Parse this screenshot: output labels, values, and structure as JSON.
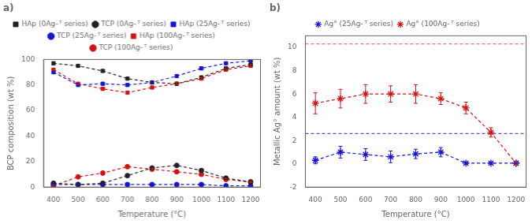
{
  "chart_data": [
    {
      "type": "line",
      "title": "a)",
      "x_label": "Temperature (°C)",
      "y_label": "BCP composition (wt %)",
      "x": [
        400,
        500,
        600,
        700,
        800,
        900,
        1000,
        1100,
        1200
      ],
      "xlim": [
        360,
        1240
      ],
      "xticks": [
        400,
        500,
        600,
        700,
        800,
        900,
        1000,
        1100,
        1200
      ],
      "ylim": [
        0,
        100
      ],
      "yticks": [
        0,
        20,
        40,
        60,
        80,
        100
      ],
      "grid": false,
      "legend": "top",
      "series": [
        {
          "name": "HAp (0Ag- ᵀ series)",
          "color": "#222222",
          "marker": "square",
          "line_style": "dashed",
          "values": [
            97,
            95,
            91,
            85,
            82,
            81,
            86,
            93,
            96
          ],
          "errors": [
            1,
            0.8,
            0.8,
            0.8,
            0.8,
            0.8,
            0.8,
            0.8,
            0.8
          ]
        },
        {
          "name": "TCP (0Ag- ᵀ series)",
          "color": "#222222",
          "marker": "circle",
          "line_style": "dashed",
          "values": [
            3,
            2,
            3,
            9,
            15,
            17,
            13,
            7,
            4
          ],
          "errors": [
            0.5,
            0.5,
            0.5,
            0.8,
            0.8,
            0.8,
            0.8,
            0.8,
            0.5
          ]
        },
        {
          "name": "HAp (25Ag- ᵀ series)",
          "color": "#1515cc",
          "marker": "square",
          "line_style": "dashed",
          "values": [
            90,
            80,
            81,
            80,
            82,
            87,
            93,
            97,
            99
          ],
          "errors": [
            1,
            1,
            1,
            1,
            1,
            1,
            1,
            0.5,
            0.5
          ]
        },
        {
          "name": "TCP (25Ag- ᵀ series)",
          "color": "#1515cc",
          "marker": "circle",
          "line_style": "dashed",
          "values": [
            2,
            2,
            2,
            2,
            2,
            2,
            2,
            1,
            1
          ],
          "errors": [
            0.5,
            0.5,
            0.5,
            0.5,
            0.5,
            0.5,
            0.5,
            0.3,
            0.3
          ]
        },
        {
          "name": "HAp (100Ag- ᵀ series)",
          "color": "#cc1515",
          "marker": "square",
          "line_style": "dashed",
          "values": [
            92,
            81,
            77,
            74,
            78,
            81,
            85,
            92,
            95
          ],
          "errors": [
            0.8,
            0.8,
            1.0,
            0.8,
            0.8,
            0.8,
            0.8,
            0.8,
            0.8
          ]
        },
        {
          "name": "TCP (100Ag- ᵀ series)",
          "color": "#cc1515",
          "marker": "circle",
          "line_style": "dashed",
          "values": [
            1,
            8,
            11,
            16,
            14,
            12,
            10,
            6,
            4
          ],
          "errors": [
            0.5,
            0.8,
            0.8,
            0.8,
            0.8,
            0.8,
            0.8,
            0.8,
            0.5
          ]
        }
      ]
    },
    {
      "type": "line",
      "title": "b)",
      "x_label": "Temperature (°C)",
      "y_label": "Metallic Ag° amount (wt %)",
      "x": [
        400,
        500,
        600,
        700,
        800,
        900,
        1000,
        1100,
        1200
      ],
      "xlim": [
        360,
        1240
      ],
      "xticks": [
        400,
        500,
        600,
        700,
        800,
        900,
        1000,
        1100,
        1200
      ],
      "ylim": [
        -2,
        11
      ],
      "yticks": [
        -2,
        0,
        2,
        4,
        6,
        8,
        10
      ],
      "grid": false,
      "legend": "top",
      "reference_lines": [
        {
          "y": 10.3,
          "color": "#cc1515",
          "line_style": "dashed"
        },
        {
          "y": 2.6,
          "color": "#1515cc",
          "line_style": "dashed"
        }
      ],
      "series": [
        {
          "name": "Ag° (25Ag- ᵀ series)",
          "color": "#1515cc",
          "marker": "star",
          "line_style": "dashed",
          "values": [
            0.3,
            1.0,
            0.8,
            0.6,
            0.85,
            1.0,
            0.05,
            0.05,
            0.05
          ],
          "errors": [
            0.3,
            0.5,
            0.5,
            0.5,
            0.4,
            0.4,
            0.1,
            0.1,
            0.1
          ]
        },
        {
          "name": "Ag° (100Ag- ᵀ series)",
          "color": "#cc1515",
          "marker": "star",
          "line_style": "dashed",
          "values": [
            5.2,
            5.6,
            6.0,
            6.0,
            6.0,
            5.6,
            4.8,
            2.7,
            0.05
          ],
          "errors": [
            0.9,
            0.8,
            0.8,
            0.7,
            0.8,
            0.5,
            0.5,
            0.4,
            0.1
          ]
        }
      ]
    }
  ]
}
